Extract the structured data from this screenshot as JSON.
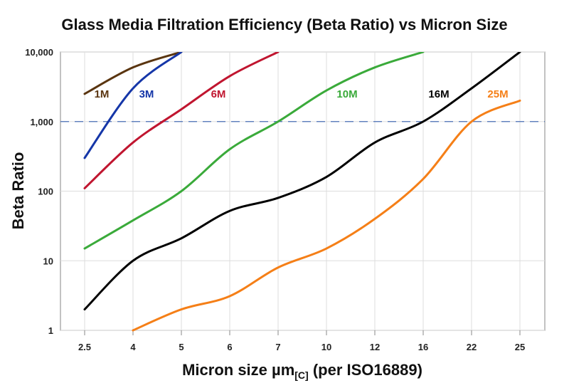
{
  "chart_data": {
    "type": "line",
    "title": "Glass Media Filtration Efficiency (Beta Ratio) vs Micron Size",
    "xlabel": "Micron size µm",
    "xlabel_subscript": "[C]",
    "xlabel_suffix": " (per ISO16889)",
    "ylabel": "Beta Ratio",
    "yscale": "log",
    "ylim": [
      1,
      10000
    ],
    "yticks": [
      1,
      10,
      100,
      1000,
      10000
    ],
    "ytick_labels": [
      "1",
      "10",
      "100",
      "1,000",
      "10,000"
    ],
    "categories": [
      "2.5",
      "4",
      "5",
      "6",
      "7",
      "10",
      "12",
      "16",
      "22",
      "25"
    ],
    "grid": true,
    "reference_line": {
      "y": 1000,
      "style": "dashed",
      "color": "#4a6fb5"
    },
    "series": [
      {
        "name": "1M",
        "color": "#5a3510",
        "values": [
          2500,
          6000,
          10000,
          null,
          null,
          null,
          null,
          null,
          null,
          null
        ]
      },
      {
        "name": "3M",
        "color": "#1536a8",
        "values": [
          300,
          3000,
          10000,
          null,
          null,
          null,
          null,
          null,
          null,
          null
        ]
      },
      {
        "name": "6M",
        "color": "#c0152f",
        "values": [
          110,
          500,
          1500,
          4500,
          10000,
          null,
          null,
          null,
          null,
          null
        ]
      },
      {
        "name": "10M",
        "color": "#3aaa3a",
        "values": [
          15,
          38,
          100,
          400,
          1000,
          2800,
          6000,
          10000,
          null,
          null
        ]
      },
      {
        "name": "16M",
        "color": "#000000",
        "values": [
          2,
          10,
          21,
          52,
          80,
          160,
          500,
          1000,
          3000,
          10000
        ]
      },
      {
        "name": "25M",
        "color": "#f57f17",
        "values": [
          null,
          1,
          2,
          3.1,
          8,
          15,
          40,
          150,
          1000,
          2000
        ]
      }
    ]
  }
}
